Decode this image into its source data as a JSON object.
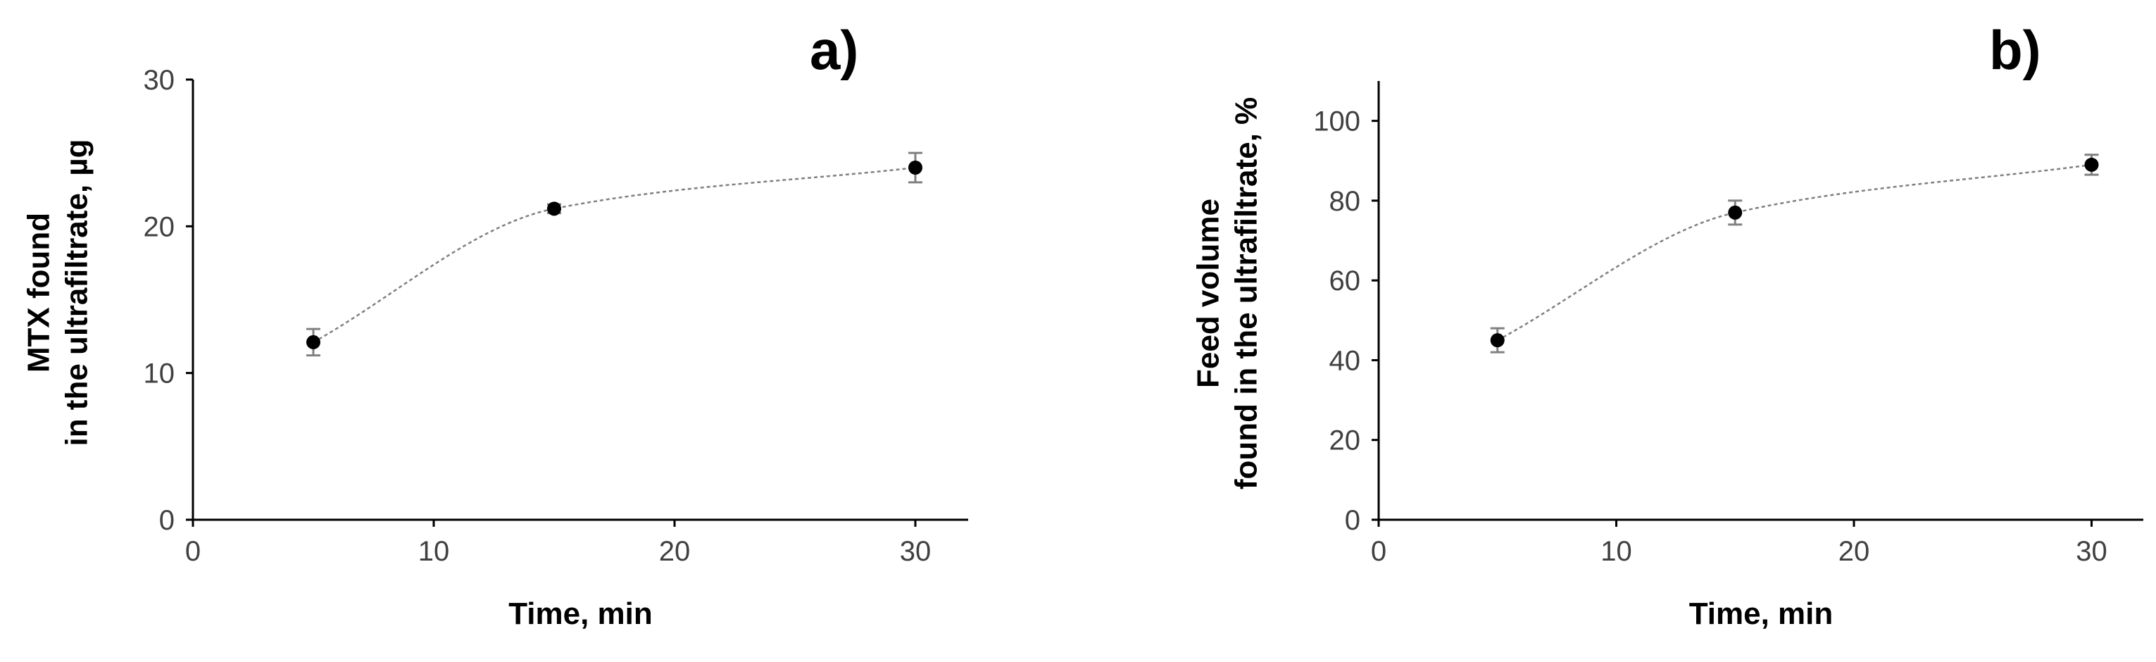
{
  "chart_data": [
    {
      "type": "scatter",
      "panel_label": "a)",
      "xlabel": "Time, min",
      "ylabel_lines": [
        "MTX found",
        "in the ultrafiltrate, µg"
      ],
      "xlim": [
        0,
        32
      ],
      "ylim": [
        0,
        30
      ],
      "xticks": [
        0,
        10,
        20,
        30
      ],
      "yticks": [
        0,
        10,
        20,
        30
      ],
      "x": [
        5,
        15,
        30
      ],
      "y": [
        12.1,
        21.2,
        24.0
      ],
      "yerr": [
        0.9,
        0.3,
        1.0
      ],
      "smoothed_line": true,
      "grid": false
    },
    {
      "type": "scatter",
      "panel_label": "b)",
      "xlabel": "Time, min",
      "ylabel_lines": [
        "Feed volume",
        "found in the ultrafiltrate, %"
      ],
      "xlim": [
        0,
        32
      ],
      "ylim": [
        0,
        110
      ],
      "xticks": [
        0,
        10,
        20,
        30
      ],
      "yticks": [
        0,
        20,
        40,
        60,
        80,
        100
      ],
      "x": [
        5,
        15,
        30
      ],
      "y": [
        45,
        77,
        89
      ],
      "yerr": [
        3.0,
        3.0,
        2.5
      ],
      "smoothed_line": true,
      "grid": false
    }
  ]
}
